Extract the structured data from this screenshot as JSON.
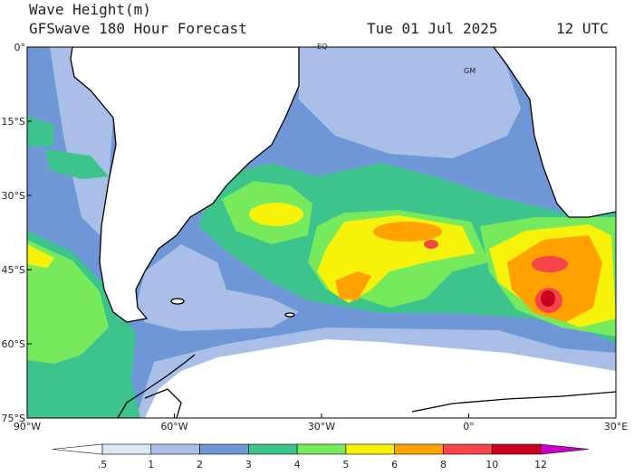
{
  "header": {
    "title": "Wave Height(m)",
    "subtitle": "GFSwave 180 Hour Forecast",
    "date": "Tue 01 Jul 2025",
    "time": "12 UTC"
  },
  "map": {
    "lat_labels": [
      "0°",
      "15°S",
      "30°S",
      "45°S",
      "60°S",
      "75°S"
    ],
    "lon_labels": [
      "90°W",
      "60°W",
      "30°W",
      "0°",
      "30°E"
    ],
    "annotations": [
      "EQ",
      "GM"
    ]
  },
  "colorbar": {
    "labels": [
      ".5",
      "1",
      "2",
      "3",
      "4",
      "5",
      "6",
      "8",
      "10",
      "12"
    ],
    "colors": [
      "#ffffff",
      "#dde8f7",
      "#a9bfe8",
      "#6f96d6",
      "#3cc48c",
      "#76ea5c",
      "#f6f20a",
      "#ffa200",
      "#f5454a",
      "#c8001e",
      "#cc00cc"
    ]
  }
}
